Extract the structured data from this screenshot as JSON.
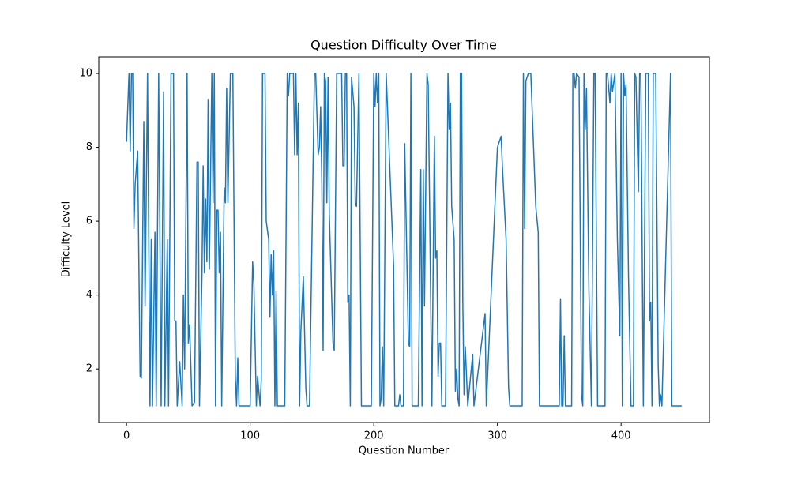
{
  "chart_data": {
    "type": "line",
    "title": "Question Difficulty Over Time",
    "x_label": "Question Number",
    "y_label": "Difficulty Level",
    "xlim": [
      -22.45,
      471.45
    ],
    "ylim": [
      0.55,
      10.45
    ],
    "xticks": [
      0,
      100,
      200,
      300,
      400
    ],
    "yticks": [
      2,
      4,
      6,
      8,
      10
    ],
    "series": [
      {
        "color": "#1f77b4",
        "x": [
          0,
          2,
          3,
          4,
          5,
          6,
          7,
          9,
          11,
          12,
          14,
          15,
          17,
          19,
          20,
          21,
          23,
          24,
          26,
          28,
          30,
          31,
          33,
          34,
          36,
          38,
          39,
          40,
          41,
          43,
          45,
          46,
          47,
          49,
          50,
          51,
          53,
          55,
          57,
          58,
          59,
          61,
          62,
          63,
          64,
          65,
          66,
          67,
          69,
          70,
          71,
          72,
          73,
          74,
          75,
          76,
          77,
          79,
          80,
          81,
          82,
          84,
          86,
          88,
          89,
          90,
          91,
          100,
          102,
          103,
          105,
          106,
          108,
          109,
          110,
          112,
          113,
          115,
          116,
          117,
          118,
          119,
          120,
          121,
          122,
          128,
          130,
          131,
          132,
          135,
          136,
          137,
          138,
          139,
          140,
          141,
          143,
          145,
          146,
          148,
          152,
          153,
          155,
          156,
          157,
          158,
          159,
          160,
          161,
          162,
          163,
          164,
          167,
          168,
          170,
          174,
          175,
          176,
          177,
          178,
          179,
          180,
          181,
          182,
          183,
          184,
          185,
          186,
          188,
          190,
          198,
          200,
          201,
          202,
          203,
          204,
          205,
          206,
          207,
          208,
          210,
          216,
          217,
          220,
          221,
          222,
          224,
          225,
          228,
          229,
          230,
          231,
          236,
          238,
          239,
          240,
          241,
          243,
          244,
          247,
          249,
          250,
          251,
          252,
          253,
          254,
          255,
          258,
          260,
          261,
          262,
          263,
          265,
          266,
          267,
          268,
          269,
          270,
          271,
          272,
          273,
          274,
          276,
          280,
          281,
          290,
          291,
          300,
          301,
          303,
          304,
          307,
          309,
          310,
          320,
          321,
          322,
          323,
          325,
          327,
          331,
          333,
          334,
          350,
          351,
          352,
          353,
          354,
          355,
          360,
          361,
          362,
          363,
          364,
          366,
          368,
          369,
          370,
          371,
          372,
          374,
          376,
          378,
          379,
          381,
          387,
          388,
          389,
          391,
          392,
          393,
          395,
          397,
          399,
          400,
          401,
          402,
          403,
          404,
          406,
          408,
          410,
          411,
          412,
          414,
          415,
          416,
          418,
          420,
          422,
          423,
          424,
          425,
          426,
          428,
          430,
          431,
          432,
          433,
          440,
          441,
          449
        ],
        "values": [
          8.15,
          10,
          7.9,
          10,
          10,
          5.8,
          7,
          7.9,
          1.8,
          1.75,
          8.7,
          3.7,
          10,
          1,
          5.5,
          1,
          5.7,
          1,
          10,
          1,
          9.5,
          1,
          5.5,
          1,
          10,
          10,
          3.3,
          3.3,
          1,
          2.2,
          1,
          4,
          2,
          10,
          2.7,
          3.2,
          1,
          1.1,
          7.6,
          7.6,
          1,
          4.5,
          7.5,
          4.6,
          6.6,
          4.9,
          9.3,
          4.7,
          10,
          6.5,
          10,
          1,
          6.3,
          6.3,
          4.6,
          5.7,
          1,
          6.9,
          6.5,
          9.6,
          6.5,
          10,
          10,
          1.8,
          1,
          2.3,
          1,
          1,
          4.9,
          4.3,
          1,
          1.8,
          1,
          1.7,
          10,
          10,
          6,
          5.5,
          3.4,
          5.1,
          4,
          5.2,
          1,
          4.1,
          1,
          1,
          10,
          9.4,
          10,
          10,
          7.8,
          10,
          7.8,
          9.2,
          1,
          3,
          4.5,
          1.5,
          1,
          1,
          10,
          10,
          7.8,
          8,
          9.1,
          7,
          2.5,
          10,
          9.8,
          6.5,
          9.9,
          6.2,
          2.7,
          2.5,
          10,
          10,
          7.5,
          7.5,
          10,
          10,
          3.8,
          4,
          1,
          9.9,
          9.5,
          9.1,
          6.5,
          6.4,
          10,
          1,
          1,
          10,
          9.1,
          10,
          9.2,
          10,
          1,
          1.2,
          2.6,
          1,
          10,
          4.8,
          1,
          1,
          1.3,
          1,
          1,
          8.1,
          2.7,
          2.6,
          10,
          1,
          1,
          7.4,
          1,
          7.4,
          3.7,
          10,
          9.7,
          1,
          8.3,
          5,
          5.2,
          1.8,
          2.7,
          2.7,
          1,
          1,
          10,
          8.5,
          9.2,
          6.4,
          5.5,
          1.4,
          2,
          1.2,
          1,
          10,
          10,
          3.8,
          1.3,
          2.6,
          1,
          2.4,
          1,
          3.5,
          1,
          8,
          8.1,
          8.3,
          7.5,
          5.5,
          1.5,
          1,
          1,
          10,
          5.8,
          9.8,
          10,
          10,
          6.4,
          5.7,
          1,
          1,
          3.9,
          1,
          1,
          2.9,
          1,
          1,
          10,
          10,
          9.6,
          10,
          9.9,
          1.3,
          1,
          10,
          8.5,
          9.6,
          4.1,
          1,
          10,
          10,
          1,
          1,
          10,
          10,
          9.2,
          10,
          9.5,
          10,
          5.5,
          2.9,
          10,
          1,
          10,
          9.4,
          9.7,
          4.5,
          1,
          1,
          10,
          9.9,
          6.8,
          10,
          10,
          1,
          10,
          10,
          3.3,
          3.8,
          1,
          10,
          10,
          2.1,
          1,
          1.3,
          1,
          10,
          1,
          1
        ]
      }
    ]
  }
}
